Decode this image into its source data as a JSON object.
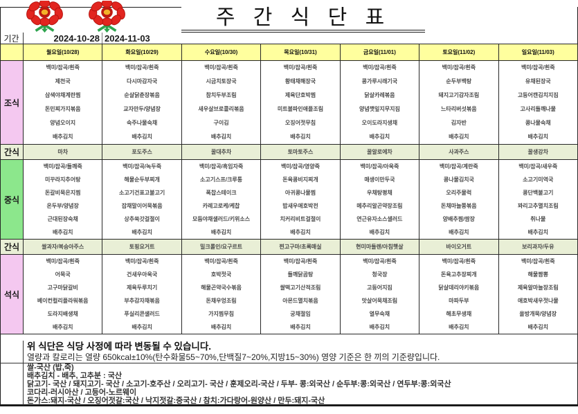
{
  "header": {
    "title": "주 간 식 단 표",
    "period_label": "기간",
    "period_start": "2024-10-28",
    "period_end": "2024-11-03"
  },
  "row_labels": {
    "breakfast": "조식",
    "snack1": "간식",
    "lunch": "중식",
    "snack2": "간식",
    "dinner": "석식"
  },
  "columns": [
    {
      "header": "월요일(10/28)",
      "breakfast": [
        "백미/잡곡/흰죽",
        "제천국",
        "삼색야채계란찜",
        "돈민찌가지볶음",
        "양념오이지",
        "배추김치"
      ],
      "snack1": "마차",
      "lunch": [
        "백미/잡곡/들깨죽",
        "미꾸라지추어탕",
        "돈갈비묵은지찜",
        "온두부/양념장",
        "근대된장숙채",
        "배추김치"
      ],
      "snack2": "쌀과자/복숭아주스",
      "dinner": [
        "백미/잡곡/흰죽",
        "어묵국",
        "고구마닭갈비",
        "베이컨컬리플라워볶음",
        "도라지배생채",
        "배추김치"
      ]
    },
    {
      "header": "화요일(10/29)",
      "breakfast": [
        "백미/잡곡/흰죽",
        "다시마감자국",
        "순살닭춘장볶음",
        "교자만두/양념장",
        "숙주나물숙채",
        "배추김치"
      ],
      "snack1": "포도주스",
      "lunch": [
        "백미/잡곡/녹두죽",
        "해물순두부찌개",
        "소고기건표고불고기",
        "잡채말이어묵볶음",
        "상추쑥갓걸절이",
        "배추김치"
      ],
      "snack2": "토핑요거트",
      "dinner": [
        "백미/잡곡/흰죽",
        "건새우아욱국",
        "제육두루치기",
        "부추감자채볶음",
        "푸실리콘샐러드",
        "배추김치"
      ]
    },
    {
      "header": "수요일(10/30)",
      "breakfast": [
        "백미/잡곡/흰죽",
        "시금치토장국",
        "참치두부조림",
        "새우살브로콜리볶음",
        "구이김",
        "배추김치"
      ],
      "snack1": "꿀대추차",
      "lunch": [
        "백미/잡곡/흑임자죽",
        "소고기스프/크루통",
        "폭찹스테이크",
        "카레고로케/케찹",
        "모듬야채샐러드/키위소스",
        "배추김치"
      ],
      "snack2": "밀크롤인/요구르트",
      "dinner": [
        "백미/잡곡/흰죽",
        "호박젓국",
        "해물곤약국수볶음",
        "돈채우엉조림",
        "가지찜무침",
        "배추김치"
      ]
    },
    {
      "header": "목요일(10/31)",
      "breakfast": [
        "백미/잡곡/흰죽",
        "황태채해장국",
        "제육단호박찜",
        "미트볼파인애플조림",
        "오징어젓무침",
        "배추김치"
      ],
      "snack1": "토마토주스",
      "lunch": [
        "백미/잡곡/영양죽",
        "돈육콩비지찌개",
        "아귀콩나물찜",
        "밥새우애호박전",
        "치커리비트걸절이",
        "배추김치"
      ],
      "snack2": "찐고구마/초록매실",
      "dinner": [
        "백미/잡곡/흰죽",
        "들깨닭곰탕",
        "쌀떡고기산적조림",
        "아몬드멸치볶음",
        "궁채절임",
        "배추김치"
      ]
    },
    {
      "header": "금요일(11/01)",
      "breakfast": [
        "백미/잡곡/흰죽",
        "콩가루시래기국",
        "닭살카레볶음",
        "양념깻잎지무지짐",
        "오이도라지생채",
        "배추김치"
      ],
      "snack1": "꿀알로에차",
      "lunch": [
        "백미/잡곡/아욱죽",
        "매생이만두국",
        "우채탕평채",
        "메추리알곤약장조림",
        "연근유자소스샐러드",
        "배추김치"
      ],
      "snack2": "현미마들렌/아침햇살",
      "dinner": [
        "백미/잡곡/흰죽",
        "청국장",
        "고등어지짐",
        "맛살어묵채조림",
        "열무숙채",
        "배추김치"
      ]
    },
    {
      "header": "토요일(11/02)",
      "breakfast": [
        "백미/잡곡/흰죽",
        "순두부백탕",
        "돼지고기감자조림",
        "느타리버섯볶음",
        "김자반",
        "배추김치"
      ],
      "snack1": "사과주스",
      "lunch": [
        "백미/잡곡/계란죽",
        "콩나물김치국",
        "오리주물럭",
        "돈채마늘쫑볶음",
        "양배추찜/쌈장",
        "배추김치"
      ],
      "snack2": "바이오거트",
      "dinner": [
        "백미/잡곡/흰죽",
        "돈육고추장찌개",
        "닭살데리야키볶음",
        "마파두부",
        "해초무생채",
        "배추김치"
      ]
    },
    {
      "header": "일요일(11/03)",
      "breakfast": [
        "백미/잡곡/흰죽",
        "유채된장국",
        "고등어캔김치지짐",
        "고사리들깨나물",
        "콩나물숙채",
        "배추김치"
      ],
      "snack1": "꿀생강차",
      "lunch": [
        "백미/잡곡/새우죽",
        "소고기미역국",
        "콩단백불고기",
        "꽈리고추멸치조림",
        "취나물",
        "배추김치"
      ],
      "snack2": "보리과자/두유",
      "dinner": [
        "백미/잡곡/흰죽",
        "해물짬뽕",
        "제육알마늘장조림",
        "애호박새우젓나물",
        "올방개묵/양념장",
        "배추김치"
      ]
    }
  ],
  "footer": {
    "notice_bold": "위 식단은 식당 사정에 따라 변동될 수 있습니다.",
    "notice": "열량과 칼로리는 열량 650kcal±10%(탄수화물55~70%,단백질7~20%,지방15~30%) 영양 기준은 한 끼의 기준량입니다.",
    "origins": [
      "쌀-국산 (밥,죽)",
      "배추김치 - 배추, 고추분 : 국산",
      "닭고기- 국산 / 돼지고기- 국산 / 소고기-호주산 / 오리고기- 국산 / 훈제오리-국산 / 두부- 콩:외국산 / 순두부:콩:외국산 / 연두부:콩:외국산",
      "코다리-러시아산 / 고등어-노르웨이",
      "돈가스:돼지-국산 / 오징어젓갈:국산 / 낙지젓갈:중국산 / 참치:가다랑어-원양산 / 만두:돼지-국산"
    ]
  },
  "colors": {
    "day_header_bg": "#FFFF9E",
    "breakfast_label_bg": "#F4C8F0",
    "lunch_label_bg": "#8CE78C",
    "dinner_label_bg": "#F4C8F0",
    "snack_row_bg": "#E9EFD6",
    "flower_red": "#E2251F",
    "flower_center": "#F3B229",
    "stem_green": "#2EA44F"
  },
  "icons": {
    "flower": "flower-icon"
  }
}
